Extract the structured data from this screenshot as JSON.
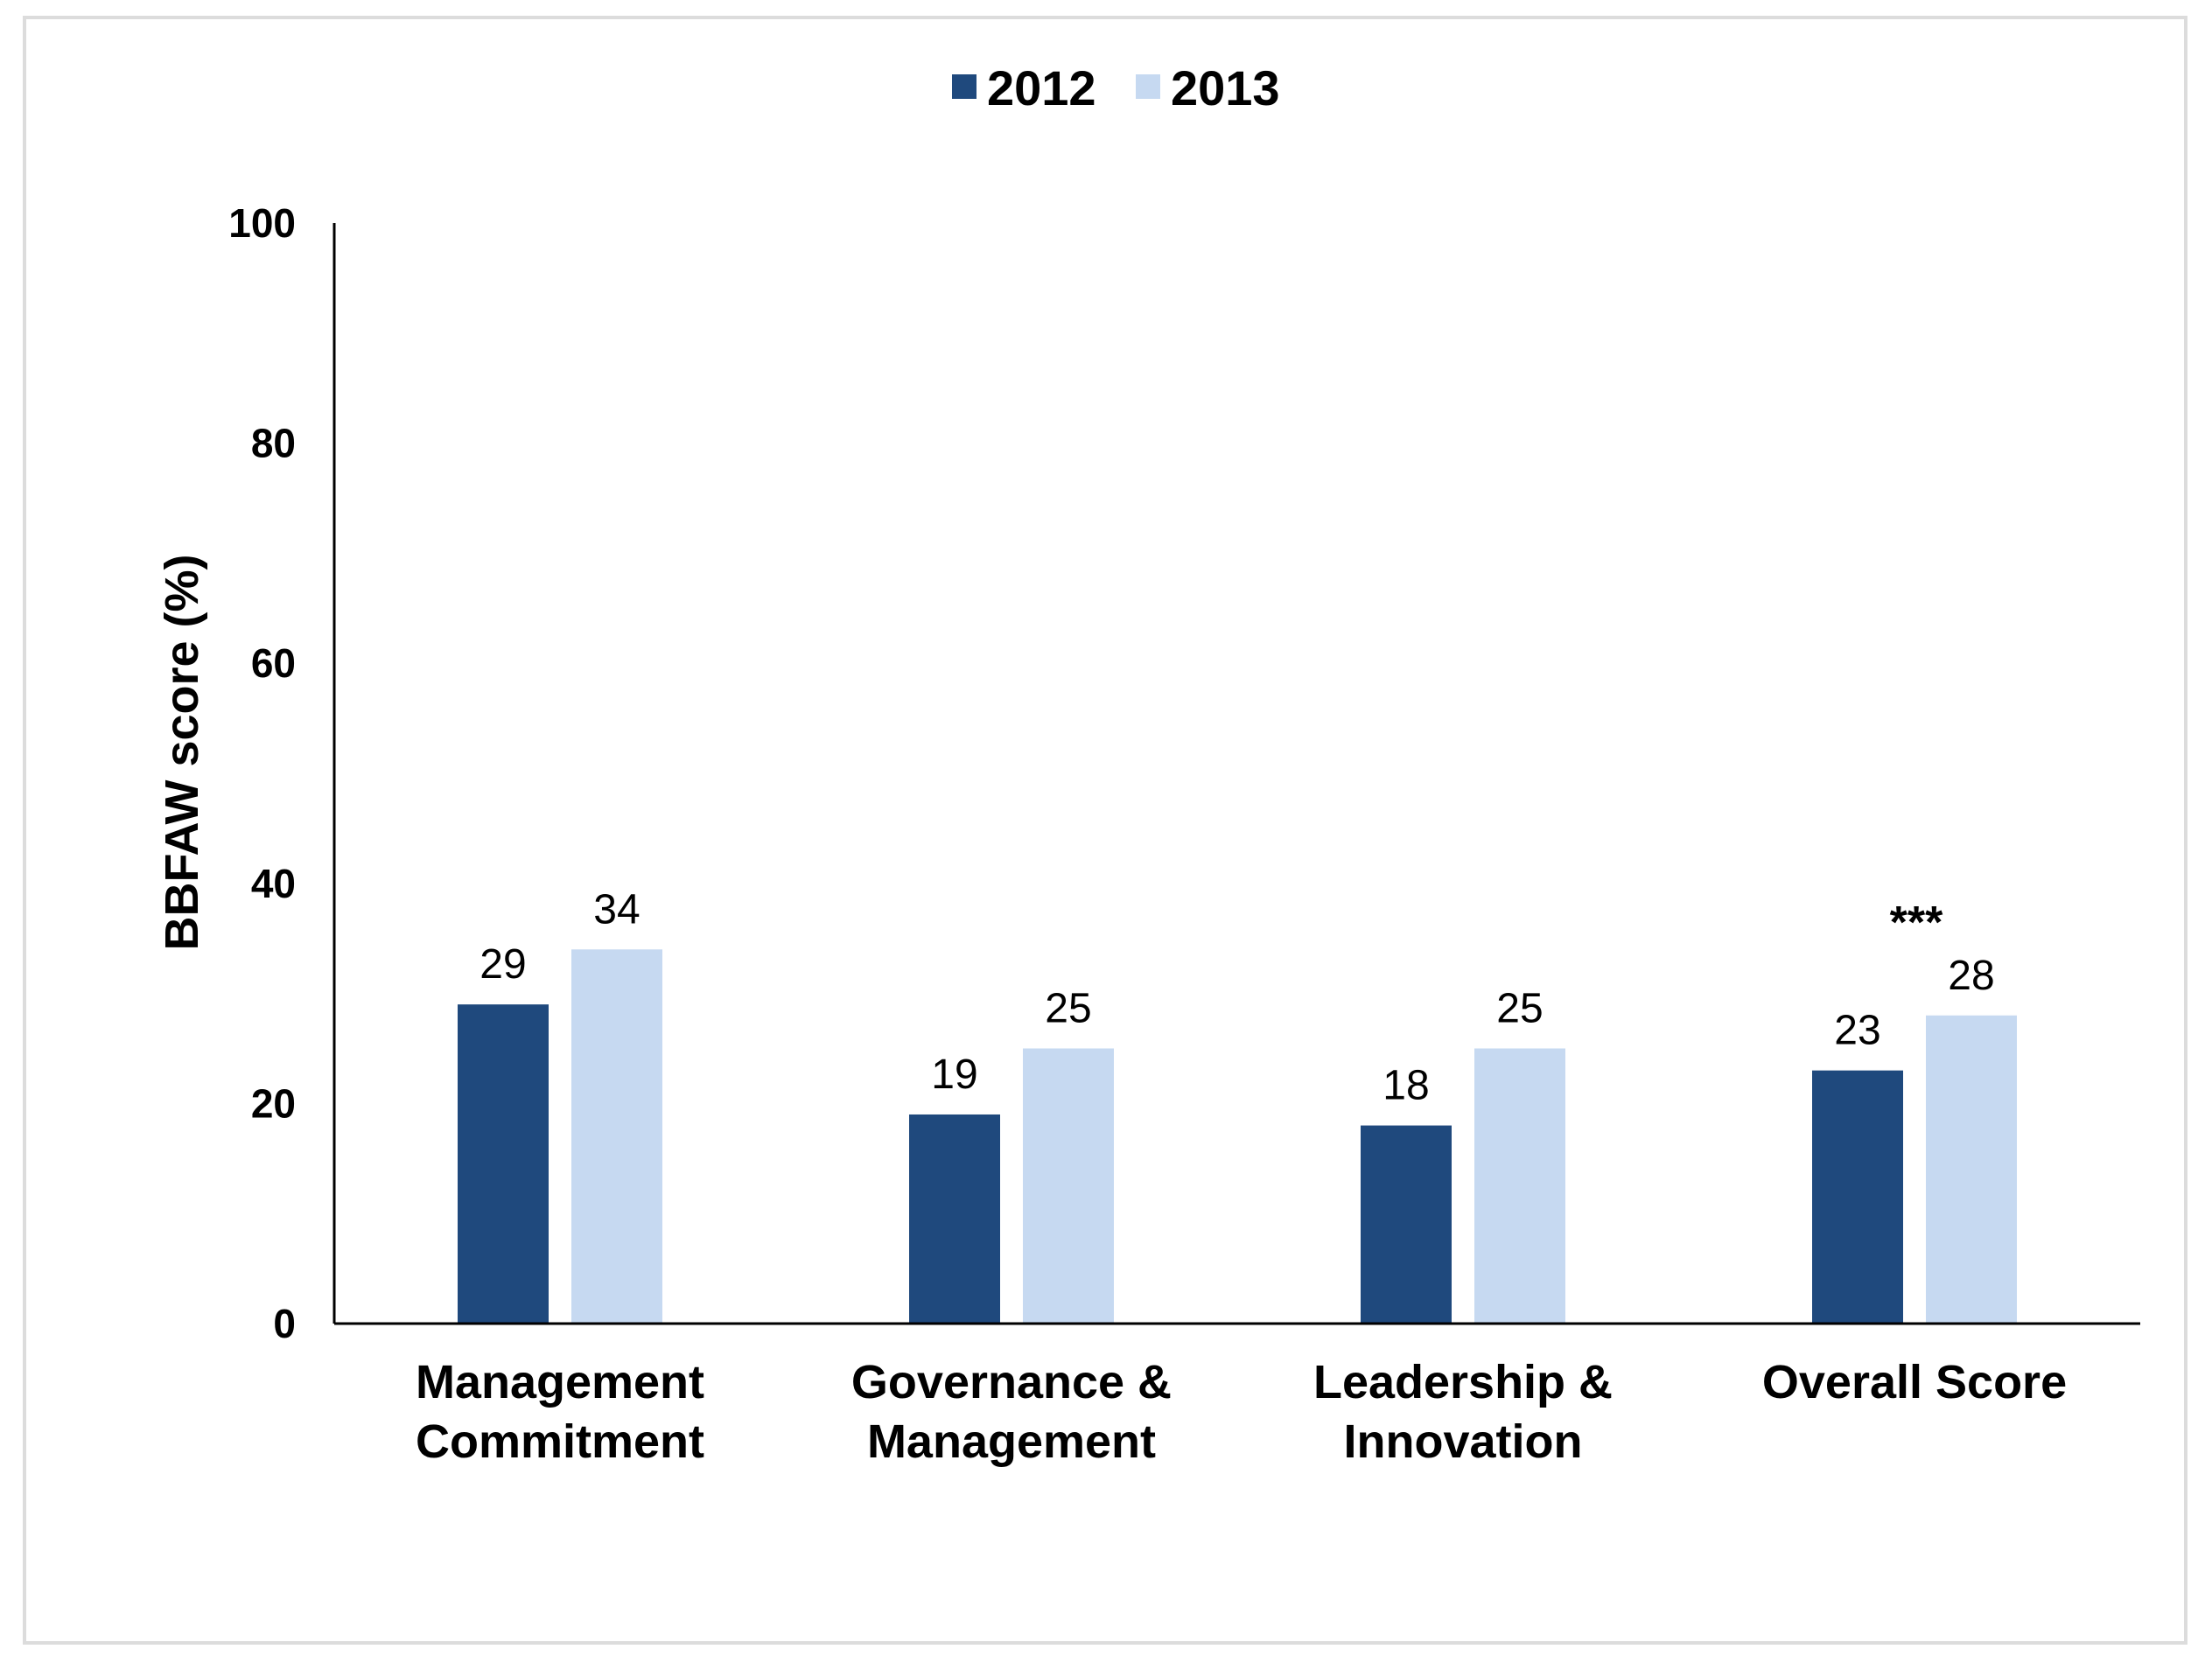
{
  "chart_data": {
    "type": "bar",
    "title": "",
    "xlabel": "",
    "ylabel": "BBFAW score (%)",
    "ylim": [
      0,
      100
    ],
    "yticks": [
      "0",
      "20",
      "40",
      "60",
      "80",
      "100"
    ],
    "legend_position": "top",
    "categories": [
      [
        "Management",
        "Commitment"
      ],
      [
        "Governance &",
        "Management"
      ],
      [
        "Leadership &",
        "Innovation"
      ],
      [
        "Overall Score"
      ]
    ],
    "series": [
      {
        "name": "2012",
        "color": "#1f497d",
        "values": [
          29,
          19,
          18,
          23
        ]
      },
      {
        "name": "2013",
        "color": "#c6d9f1",
        "values": [
          34,
          25,
          25,
          28
        ]
      }
    ],
    "annotations": [
      {
        "category_index": 3,
        "text": "***"
      }
    ]
  }
}
